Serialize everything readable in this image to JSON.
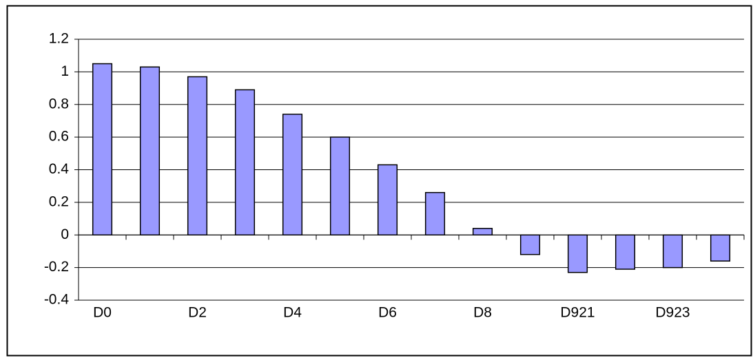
{
  "chart_data": {
    "type": "bar",
    "categories": [
      "D0",
      null,
      "D2",
      null,
      "D4",
      null,
      "D6",
      null,
      "D8",
      null,
      "D921",
      null,
      "D923",
      null
    ],
    "values": [
      1.05,
      1.03,
      0.97,
      0.89,
      0.74,
      0.6,
      0.43,
      0.26,
      0.04,
      -0.12,
      -0.23,
      -0.21,
      -0.2,
      -0.16
    ],
    "color": "#9999ff",
    "ylim": [
      -0.4,
      1.2
    ],
    "yticks": [
      -0.4,
      -0.2,
      0,
      0.2,
      0.4,
      0.6,
      0.8,
      1,
      1.2
    ],
    "grid": true
  }
}
